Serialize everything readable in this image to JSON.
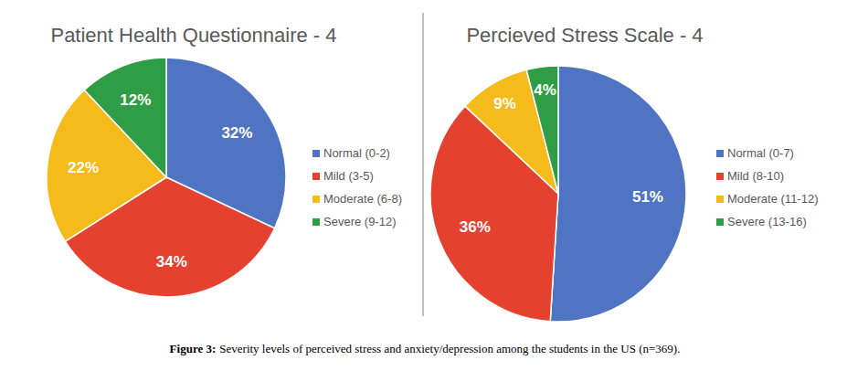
{
  "chart_data": [
    {
      "type": "pie",
      "title": "Patient Health Questionnaire - 4",
      "categories": [
        "Normal (0-2)",
        "Mild (3-5)",
        "Moderate (6-8)",
        "Severe (9-12)"
      ],
      "values": [
        32,
        34,
        22,
        12
      ],
      "value_labels": [
        "32%",
        "34%",
        "22%",
        "12%"
      ],
      "colors": [
        "#4f74c2",
        "#e4412f",
        "#f5bb1b",
        "#2f9d46"
      ],
      "data_labels": true,
      "legend": "right"
    },
    {
      "type": "pie",
      "title": "Percieved Stress Scale - 4",
      "categories": [
        "Normal (0-7)",
        "Mild (8-10)",
        "Moderate (11-12)",
        "Severe (13-16)"
      ],
      "values": [
        51,
        36,
        9,
        4
      ],
      "value_labels": [
        "51%",
        "36%",
        "9%",
        "4%"
      ],
      "colors": [
        "#4f74c2",
        "#e4412f",
        "#f5bb1b",
        "#2f9d46"
      ],
      "data_labels": true,
      "legend": "right"
    }
  ],
  "figure": {
    "label": "Figure 3:",
    "caption": "Severity levels of perceived stress and anxiety/depression among the students in the US (n=369)."
  }
}
